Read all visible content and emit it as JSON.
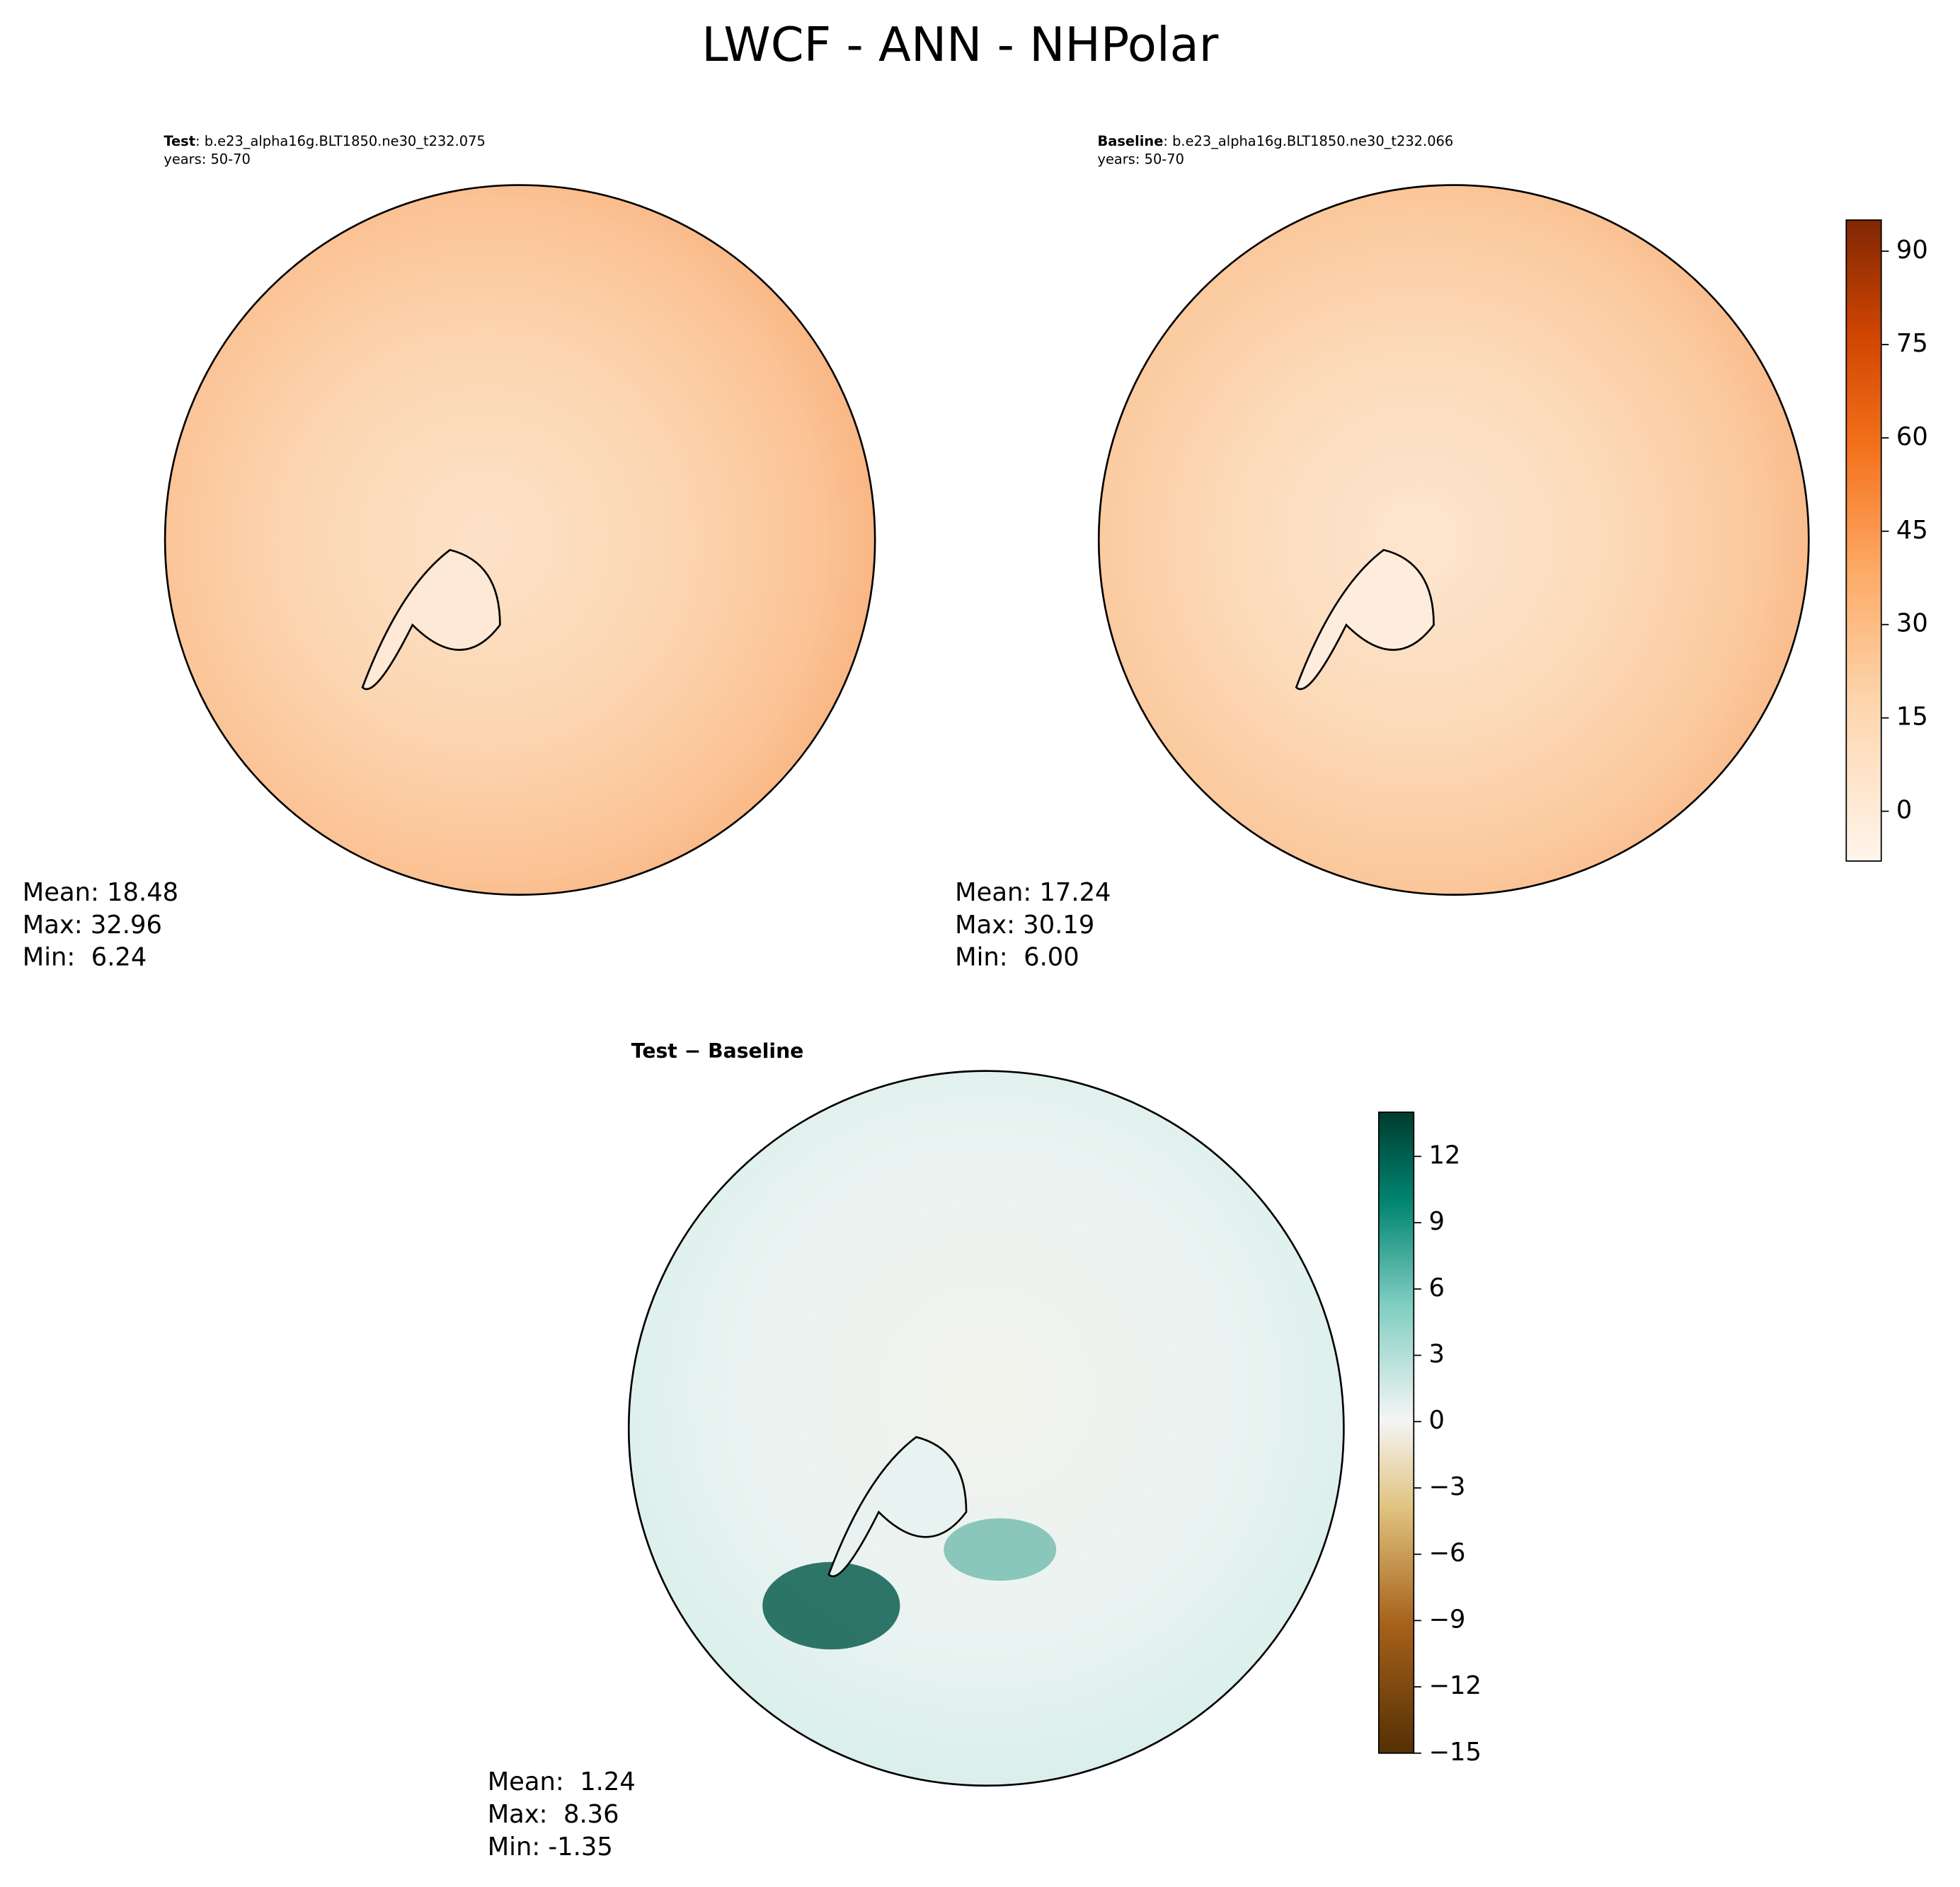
{
  "title": "LWCF - ANN - NHPolar",
  "panels": [
    {
      "label": "Test",
      "case": ": b.e23_alpha16g.BLT1850.ne30_t232.075",
      "years": "years: 50-70",
      "stats": [
        "Mean: 18.48",
        "Max: 32.96",
        "Min:  6.24"
      ]
    },
    {
      "label": "Baseline",
      "case": ": b.e23_alpha16g.BLT1850.ne30_t232.066",
      "years": "years: 50-70",
      "stats": [
        "Mean: 17.24",
        "Max: 30.19",
        "Min:  6.00"
      ]
    },
    {
      "label": "Test − Baseline",
      "stats": [
        "Mean:  1.24",
        "Max:  8.36",
        "Min: -1.35"
      ]
    }
  ],
  "colorbars": [
    {
      "lim": [
        -8,
        95
      ],
      "ticks": [
        0,
        15,
        30,
        45,
        60,
        75,
        90
      ]
    },
    {
      "lim": [
        -15,
        14
      ],
      "ticks": [
        {
          "value": -15,
          "label": "−15"
        },
        {
          "value": -12,
          "label": "−12"
        },
        {
          "value": -9,
          "label": "−9"
        },
        {
          "value": -6,
          "label": "−6"
        },
        {
          "value": -3,
          "label": "−3"
        },
        0,
        3,
        6,
        9,
        12
      ]
    }
  ]
}
